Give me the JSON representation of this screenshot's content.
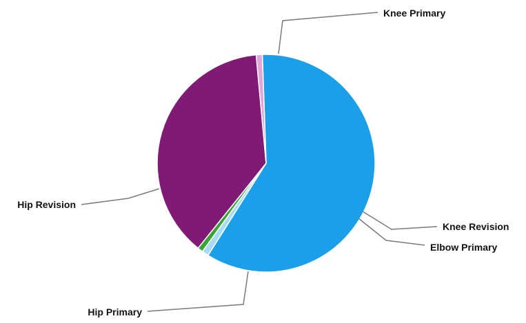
{
  "chart_data": {
    "type": "pie",
    "start_angle_deg": 92,
    "slices": [
      {
        "label": "Knee Primary",
        "value": 59.5,
        "color": "#1b9fe8"
      },
      {
        "label": "Knee Revision",
        "value": 1.0,
        "color": "#a8dcf6"
      },
      {
        "label": "Elbow Primary",
        "value": 0.8,
        "color": "#3aa535"
      },
      {
        "label": "Hip Primary",
        "value": 37.8,
        "color": "#7f1a75"
      },
      {
        "label": "Hip Revision",
        "value": 0.9,
        "color": "#e3a6d8"
      }
    ],
    "legend": "none",
    "data_labels": "outside with leader lines"
  }
}
